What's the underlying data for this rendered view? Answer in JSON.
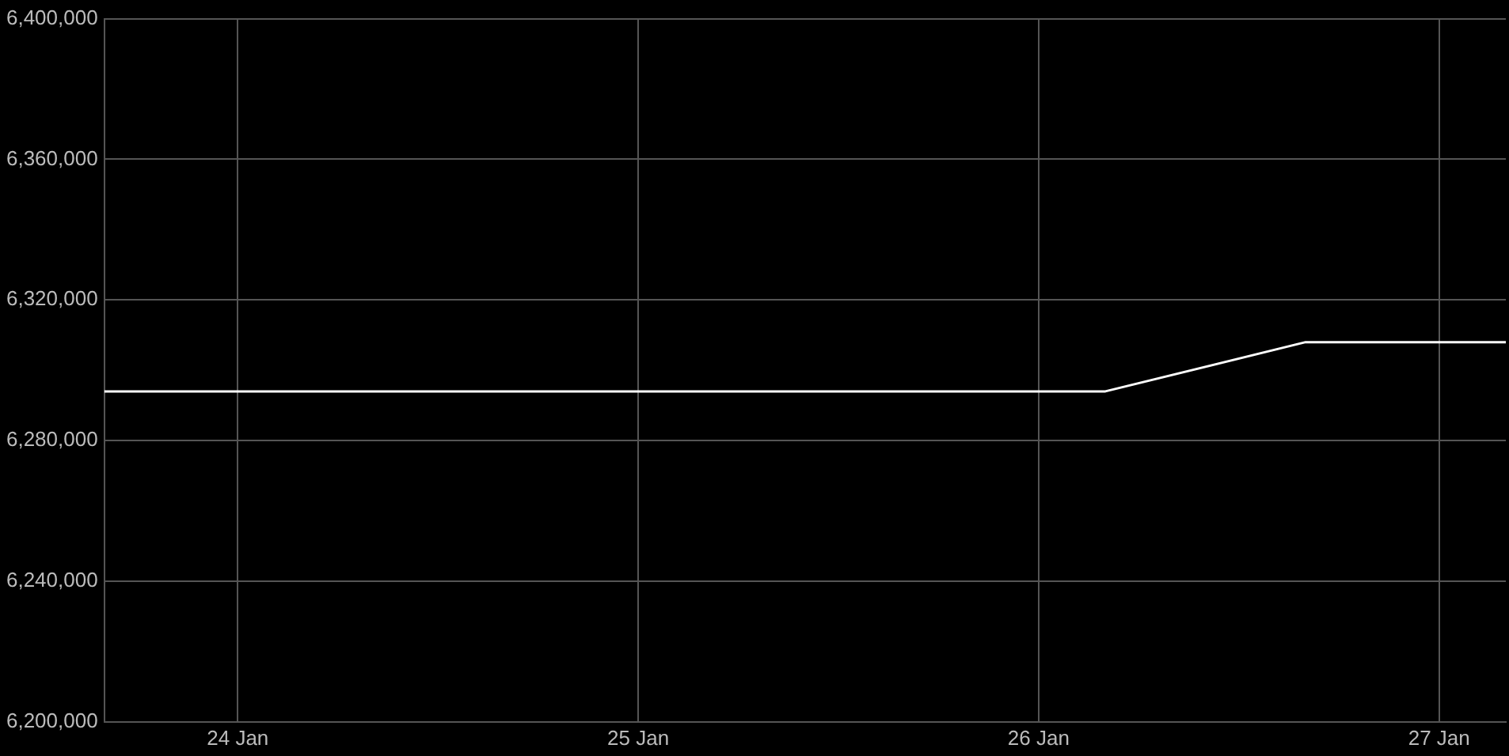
{
  "chart_data": {
    "type": "line",
    "x": [
      "--01-23T16:00",
      "--01-26T04:00",
      "--01-26T16:00",
      "--01-27T04:00"
    ],
    "series": [
      {
        "color": "#ffffff",
        "values": [
          6294000,
          6294000,
          6308000,
          6308000
        ]
      }
    ],
    "xlim": [
      "--01-23T16:00",
      "--01-27T04:00"
    ],
    "xticks": [
      {
        "value": "--01-24",
        "label": "24 Jan"
      },
      {
        "value": "--01-25",
        "label": "25 Jan"
      },
      {
        "value": "--01-26",
        "label": "26 Jan"
      },
      {
        "value": "--01-27",
        "label": "27 Jan"
      }
    ],
    "ylim": [
      6200000,
      6400000
    ],
    "yticks": [
      {
        "value": 6200000,
        "label": "6,200,000"
      },
      {
        "value": 6240000,
        "label": "6,240,000"
      },
      {
        "value": 6280000,
        "label": "6,280,000"
      },
      {
        "value": 6320000,
        "label": "6,320,000"
      },
      {
        "value": 6360000,
        "label": "6,360,000"
      },
      {
        "value": 6400000,
        "label": "6,400,000"
      }
    ],
    "grid": true,
    "legend": false,
    "marker": "none",
    "line_style": "solid"
  }
}
